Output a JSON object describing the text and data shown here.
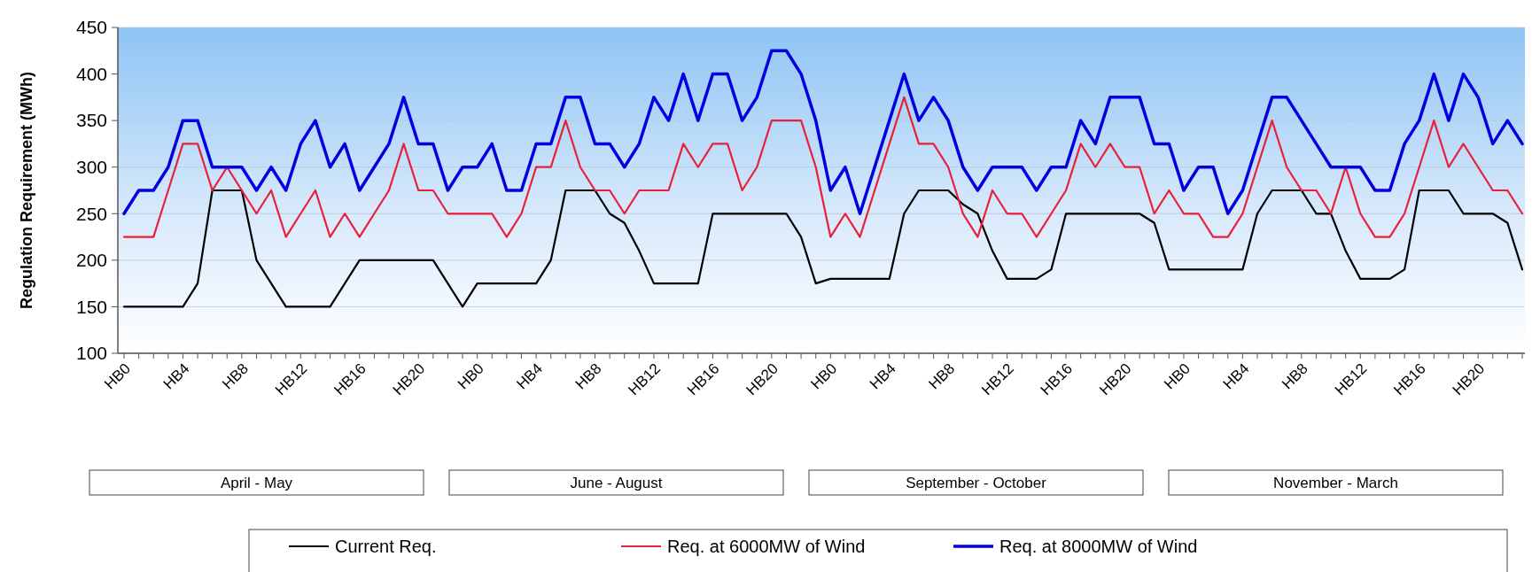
{
  "chart_data": {
    "type": "line",
    "ylabel": "Regulation Requirement (MWh)",
    "categories": [
      "HB0",
      null,
      null,
      null,
      "HB4",
      null,
      null,
      null,
      "HB8",
      null,
      null,
      null,
      "HB12",
      null,
      null,
      null,
      "HB16",
      null,
      null,
      null,
      "HB20",
      null,
      null,
      null,
      "HB0",
      null,
      null,
      null,
      "HB4",
      null,
      null,
      null,
      "HB8",
      null,
      null,
      null,
      "HB12",
      null,
      null,
      null,
      "HB16",
      null,
      null,
      null,
      "HB20",
      null,
      null,
      null,
      "HB0",
      null,
      null,
      null,
      "HB4",
      null,
      null,
      null,
      "HB8",
      null,
      null,
      null,
      "HB12",
      null,
      null,
      null,
      "HB16",
      null,
      null,
      null,
      "HB20",
      null,
      null,
      null,
      "HB0",
      null,
      null,
      null,
      "HB4",
      null,
      null,
      null,
      "HB8",
      null,
      null,
      null,
      "HB12",
      null,
      null,
      null,
      "HB16",
      null,
      null,
      null,
      "HB20",
      null,
      null,
      null
    ],
    "series": [
      {
        "name": "Current Req.",
        "color": "#000000",
        "values": [
          150,
          150,
          150,
          150,
          150,
          175,
          275,
          275,
          275,
          200,
          175,
          150,
          150,
          150,
          150,
          175,
          200,
          200,
          200,
          200,
          200,
          200,
          175,
          150,
          175,
          175,
          175,
          175,
          175,
          200,
          275,
          275,
          275,
          250,
          240,
          210,
          175,
          175,
          175,
          175,
          250,
          250,
          250,
          250,
          250,
          250,
          225,
          175,
          180,
          180,
          180,
          180,
          180,
          250,
          275,
          275,
          275,
          260,
          250,
          210,
          180,
          180,
          180,
          190,
          250,
          250,
          250,
          250,
          250,
          250,
          240,
          190,
          190,
          190,
          190,
          190,
          190,
          250,
          275,
          275,
          275,
          250,
          250,
          210,
          180,
          180,
          180,
          190,
          275,
          275,
          275,
          250,
          250,
          250,
          240,
          190
        ]
      },
      {
        "name": "Req. at 6000MW of Wind",
        "color": "#e8203a",
        "values": [
          225,
          225,
          225,
          275,
          325,
          325,
          275,
          300,
          275,
          250,
          275,
          225,
          250,
          275,
          225,
          250,
          225,
          250,
          275,
          325,
          275,
          275,
          250,
          250,
          250,
          250,
          225,
          250,
          300,
          300,
          350,
          300,
          275,
          275,
          250,
          275,
          275,
          275,
          325,
          300,
          325,
          325,
          275,
          300,
          350,
          350,
          350,
          300,
          225,
          250,
          225,
          275,
          325,
          375,
          325,
          325,
          300,
          250,
          225,
          275,
          250,
          250,
          225,
          250,
          275,
          325,
          300,
          325,
          300,
          300,
          250,
          275,
          250,
          250,
          225,
          225,
          250,
          300,
          350,
          300,
          275,
          275,
          250,
          300,
          250,
          225,
          225,
          250,
          300,
          350,
          300,
          325,
          300,
          275,
          275,
          250
        ]
      },
      {
        "name": "Req. at 8000MW of Wind",
        "color": "#0000e0",
        "values": [
          250,
          275,
          275,
          300,
          350,
          350,
          300,
          300,
          300,
          275,
          300,
          275,
          325,
          350,
          300,
          325,
          275,
          300,
          325,
          375,
          325,
          325,
          275,
          300,
          300,
          325,
          275,
          275,
          325,
          325,
          375,
          375,
          325,
          325,
          300,
          325,
          375,
          350,
          400,
          350,
          400,
          400,
          350,
          375,
          425,
          425,
          400,
          350,
          275,
          300,
          250,
          300,
          350,
          400,
          350,
          375,
          350,
          300,
          275,
          300,
          300,
          300,
          275,
          300,
          300,
          350,
          325,
          375,
          375,
          375,
          325,
          325,
          275,
          300,
          300,
          250,
          275,
          325,
          375,
          375,
          350,
          325,
          300,
          300,
          300,
          275,
          275,
          325,
          350,
          400,
          350,
          400,
          375,
          325,
          350,
          325
        ]
      }
    ],
    "ylim": [
      100,
      450
    ],
    "yticks": [
      100,
      150,
      200,
      250,
      300,
      350,
      400,
      450
    ],
    "grid": "y",
    "legend": "bottom",
    "annotations": [
      "April - May",
      "June - August",
      "September - October",
      "November - March"
    ]
  }
}
